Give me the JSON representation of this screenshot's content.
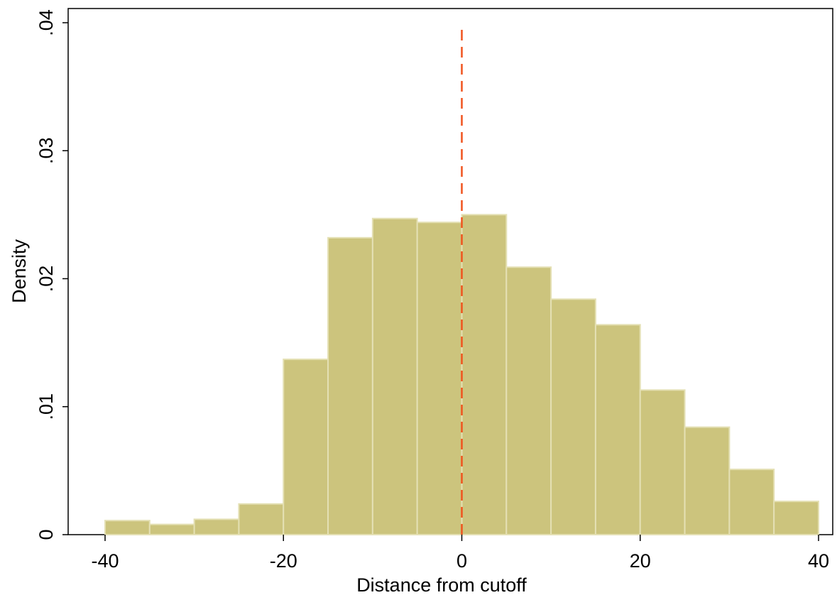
{
  "chart_data": {
    "type": "bar",
    "subtype": "histogram",
    "title": "",
    "xlabel": "Distance from cutoff",
    "ylabel": "Density",
    "xlim": [
      -44,
      40
    ],
    "ylim": [
      0,
      0.04
    ],
    "x_ticks": [
      -40,
      -20,
      0,
      20,
      40
    ],
    "x_tick_labels": [
      "-40",
      "-20",
      "0",
      "20",
      "40"
    ],
    "y_ticks": [
      0,
      0.01,
      0.02,
      0.03,
      0.04
    ],
    "y_tick_labels": [
      "0",
      ".01",
      ".02",
      ".03",
      ".04"
    ],
    "bin_width": 5,
    "bins": [
      {
        "start": -40,
        "end": -35,
        "density": 0.0011
      },
      {
        "start": -35,
        "end": -30,
        "density": 0.0008
      },
      {
        "start": -30,
        "end": -25,
        "density": 0.0012
      },
      {
        "start": -25,
        "end": -20,
        "density": 0.0024
      },
      {
        "start": -20,
        "end": -15,
        "density": 0.0137
      },
      {
        "start": -15,
        "end": -10,
        "density": 0.0232
      },
      {
        "start": -10,
        "end": -5,
        "density": 0.0247
      },
      {
        "start": -5,
        "end": 0,
        "density": 0.0244
      },
      {
        "start": 0,
        "end": 5,
        "density": 0.025
      },
      {
        "start": 5,
        "end": 10,
        "density": 0.0209
      },
      {
        "start": 10,
        "end": 15,
        "density": 0.0184
      },
      {
        "start": 15,
        "end": 20,
        "density": 0.0164
      },
      {
        "start": 20,
        "end": 25,
        "density": 0.0113
      },
      {
        "start": 25,
        "end": 30,
        "density": 0.0084
      },
      {
        "start": 30,
        "end": 35,
        "density": 0.0051
      },
      {
        "start": 35,
        "end": 40,
        "density": 0.0026
      }
    ],
    "reference_line": {
      "x": 0,
      "style": "dashed",
      "y_top": 0.0397
    },
    "grid": false,
    "legend": "none",
    "colors": {
      "bar_fill": "#CCC47D",
      "bar_edge": "#E4E0B4",
      "reference_line": "#F0541E",
      "axis": "#000000"
    }
  }
}
